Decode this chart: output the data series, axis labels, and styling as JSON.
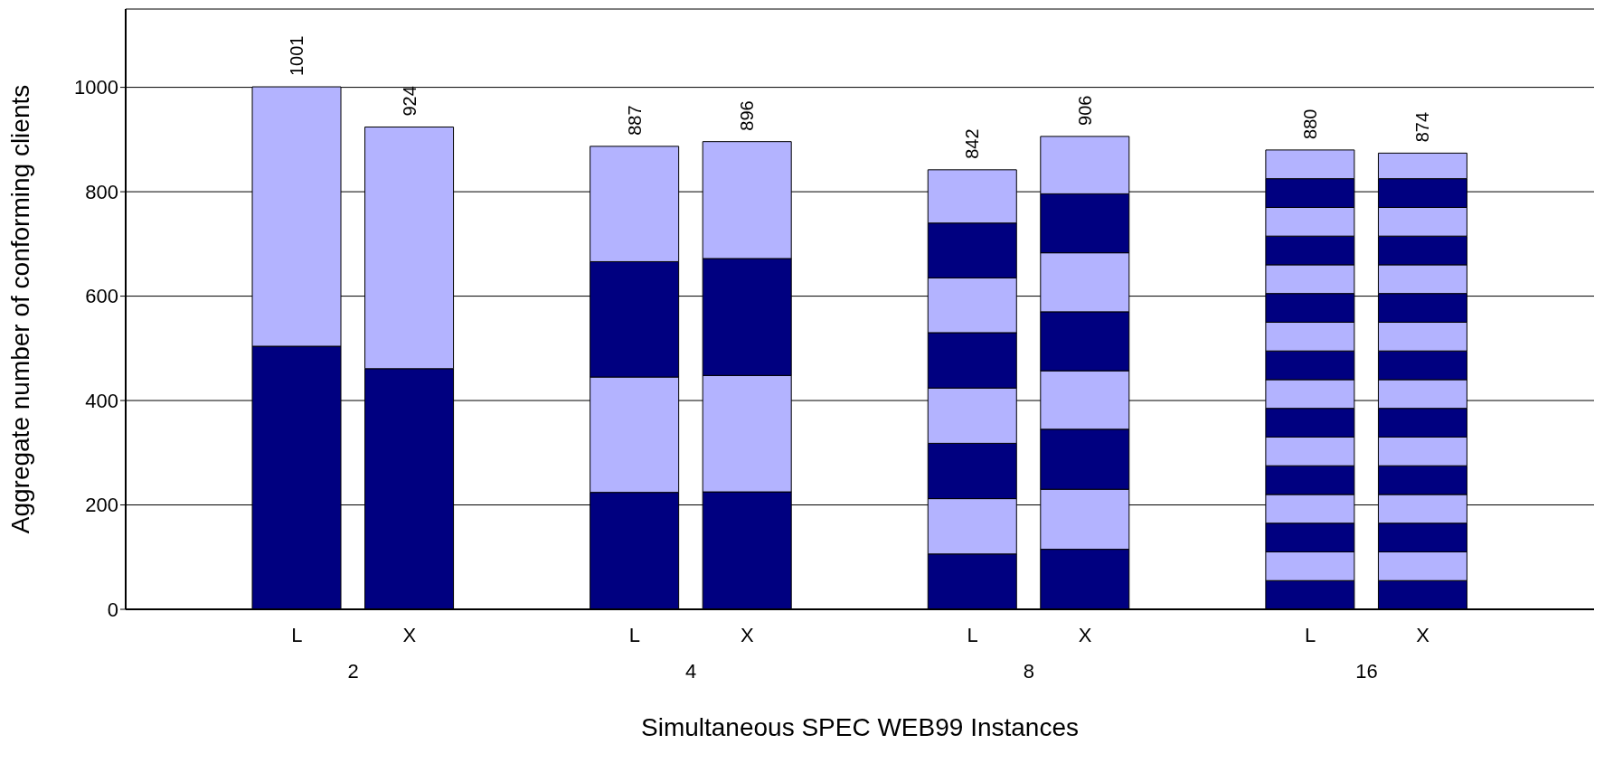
{
  "chart_data": {
    "type": "bar",
    "stacked": true,
    "ylabel": "Aggregate number of conforming clients",
    "xlabel": "Simultaneous SPEC WEB99 Instances",
    "categories": [
      "L",
      "X",
      "L",
      "X",
      "L",
      "X",
      "L",
      "X"
    ],
    "annotations": [
      "2",
      "4",
      "8",
      "16"
    ],
    "series": [
      {
        "color": "#000080",
        "values": [
          504,
          461,
          224,
          225,
          106,
          115,
          55,
          55
        ]
      },
      {
        "color": "#b3b3ff",
        "values": [
          497,
          463,
          221,
          223,
          106,
          115,
          55,
          55
        ]
      },
      {
        "color": "#000080",
        "values": [
          null,
          null,
          221,
          224,
          106,
          115,
          55,
          55
        ]
      },
      {
        "color": "#b3b3ff",
        "values": [
          null,
          null,
          221,
          224,
          106,
          112,
          55,
          55
        ]
      },
      {
        "color": "#000080",
        "values": [
          null,
          null,
          null,
          null,
          106,
          113,
          55,
          55
        ]
      },
      {
        "color": "#b3b3ff",
        "values": [
          null,
          null,
          null,
          null,
          105,
          113,
          55,
          55
        ]
      },
      {
        "color": "#000080",
        "values": [
          null,
          null,
          null,
          null,
          105,
          113,
          55,
          55
        ]
      },
      {
        "color": "#b3b3ff",
        "values": [
          null,
          null,
          null,
          null,
          102,
          110,
          55,
          55
        ]
      },
      {
        "color": "#000080",
        "values": [
          null,
          null,
          null,
          null,
          null,
          null,
          55,
          55
        ]
      },
      {
        "color": "#b3b3ff",
        "values": [
          null,
          null,
          null,
          null,
          null,
          null,
          55,
          55
        ]
      },
      {
        "color": "#000080",
        "values": [
          null,
          null,
          null,
          null,
          null,
          null,
          55,
          55
        ]
      },
      {
        "color": "#b3b3ff",
        "values": [
          null,
          null,
          null,
          null,
          null,
          null,
          55,
          55
        ]
      },
      {
        "color": "#000080",
        "values": [
          null,
          null,
          null,
          null,
          null,
          null,
          55,
          55
        ]
      },
      {
        "color": "#b3b3ff",
        "values": [
          null,
          null,
          null,
          null,
          null,
          null,
          55,
          55
        ]
      },
      {
        "color": "#000080",
        "values": [
          null,
          null,
          null,
          null,
          null,
          null,
          55,
          55
        ]
      },
      {
        "color": "#b3b3ff",
        "values": [
          null,
          null,
          null,
          null,
          null,
          null,
          55,
          49
        ]
      }
    ],
    "totals": [
      "1001",
      "924",
      "887",
      "896",
      "842",
      "906",
      "880",
      "874"
    ],
    "ylim": [
      0,
      1150
    ],
    "yticks": [
      0,
      200,
      400,
      600,
      800,
      1000
    ],
    "grid": "y",
    "legend": false
  }
}
